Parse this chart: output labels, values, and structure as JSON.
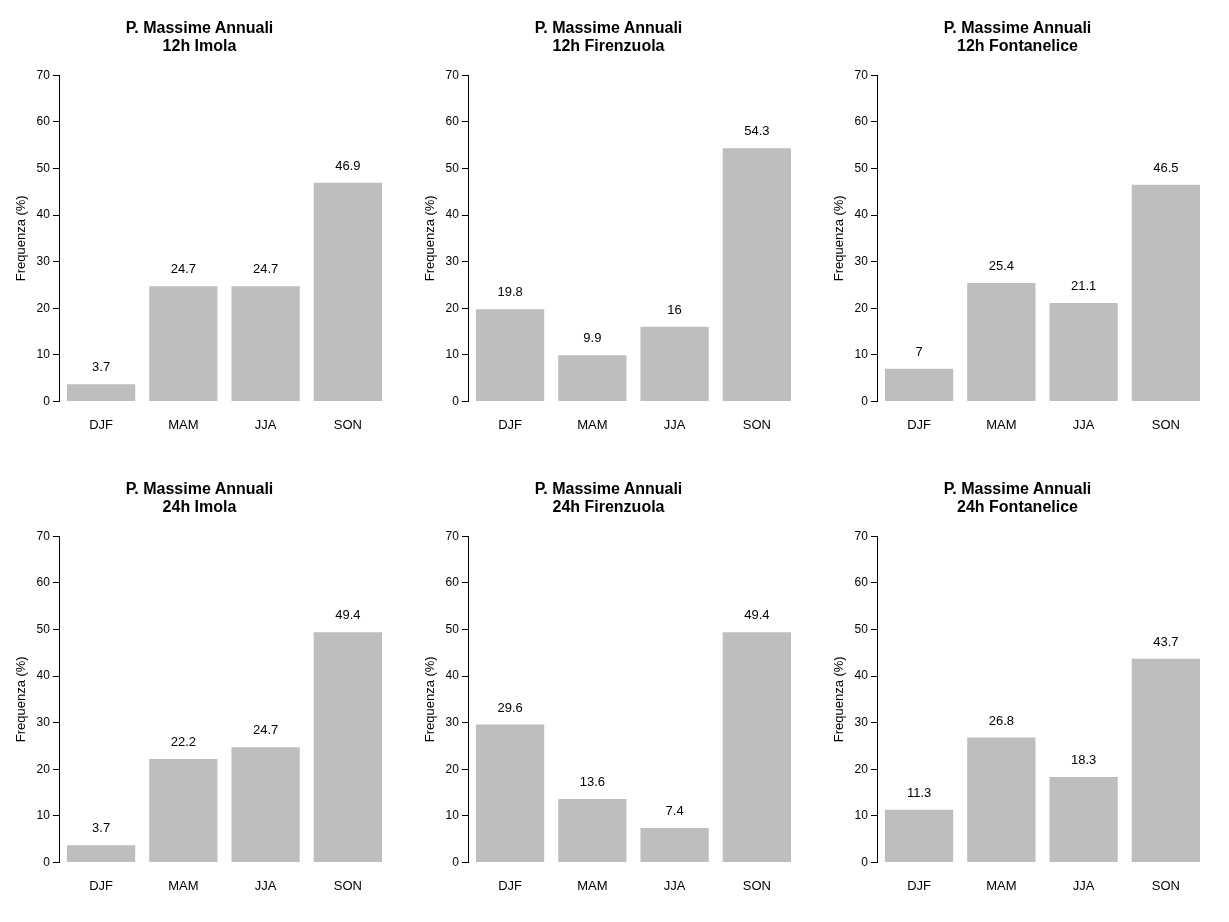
{
  "chart_data": [
    {
      "type": "bar",
      "title": "P. Massime Annuali\n12h Imola",
      "ylabel": "Frequenza (%)",
      "categories": [
        "DJF",
        "MAM",
        "JJA",
        "SON"
      ],
      "values": [
        3.7,
        24.7,
        24.7,
        46.9
      ],
      "color": "#bebebe",
      "ylim": [
        0,
        70
      ],
      "yticks": [
        0,
        10,
        20,
        30,
        40,
        50,
        60,
        70
      ],
      "grid": false,
      "data_labels": true
    },
    {
      "type": "bar",
      "title": "P. Massime Annuali\n12h Firenzuola",
      "ylabel": "Frequenza (%)",
      "categories": [
        "DJF",
        "MAM",
        "JJA",
        "SON"
      ],
      "values": [
        19.8,
        9.9,
        16,
        54.3
      ],
      "color": "#bebebe",
      "ylim": [
        0,
        70
      ],
      "yticks": [
        0,
        10,
        20,
        30,
        40,
        50,
        60,
        70
      ],
      "grid": false,
      "data_labels": true
    },
    {
      "type": "bar",
      "title": "P. Massime Annuali\n12h Fontanelice",
      "ylabel": "Frequenza (%)",
      "categories": [
        "DJF",
        "MAM",
        "JJA",
        "SON"
      ],
      "values": [
        7,
        25.4,
        21.1,
        46.5
      ],
      "color": "#bebebe",
      "ylim": [
        0,
        70
      ],
      "yticks": [
        0,
        10,
        20,
        30,
        40,
        50,
        60,
        70
      ],
      "grid": false,
      "data_labels": true
    },
    {
      "type": "bar",
      "title": "P. Massime Annuali\n24h Imola",
      "ylabel": "Frequenza (%)",
      "categories": [
        "DJF",
        "MAM",
        "JJA",
        "SON"
      ],
      "values": [
        3.7,
        22.2,
        24.7,
        49.4
      ],
      "color": "#bebebe",
      "ylim": [
        0,
        70
      ],
      "yticks": [
        0,
        10,
        20,
        30,
        40,
        50,
        60,
        70
      ],
      "grid": false,
      "data_labels": true
    },
    {
      "type": "bar",
      "title": "P. Massime Annuali\n24h Firenzuola",
      "ylabel": "Frequenza (%)",
      "categories": [
        "DJF",
        "MAM",
        "JJA",
        "SON"
      ],
      "values": [
        29.6,
        13.6,
        7.4,
        49.4
      ],
      "color": "#bebebe",
      "ylim": [
        0,
        70
      ],
      "yticks": [
        0,
        10,
        20,
        30,
        40,
        50,
        60,
        70
      ],
      "grid": false,
      "data_labels": true
    },
    {
      "type": "bar",
      "title": "P. Massime Annuali\n24h Fontanelice",
      "ylabel": "Frequenza (%)",
      "categories": [
        "DJF",
        "MAM",
        "JJA",
        "SON"
      ],
      "values": [
        11.3,
        26.8,
        18.3,
        43.7
      ],
      "color": "#bebebe",
      "ylim": [
        0,
        70
      ],
      "yticks": [
        0,
        10,
        20,
        30,
        40,
        50,
        60,
        70
      ],
      "grid": false,
      "data_labels": true
    }
  ]
}
